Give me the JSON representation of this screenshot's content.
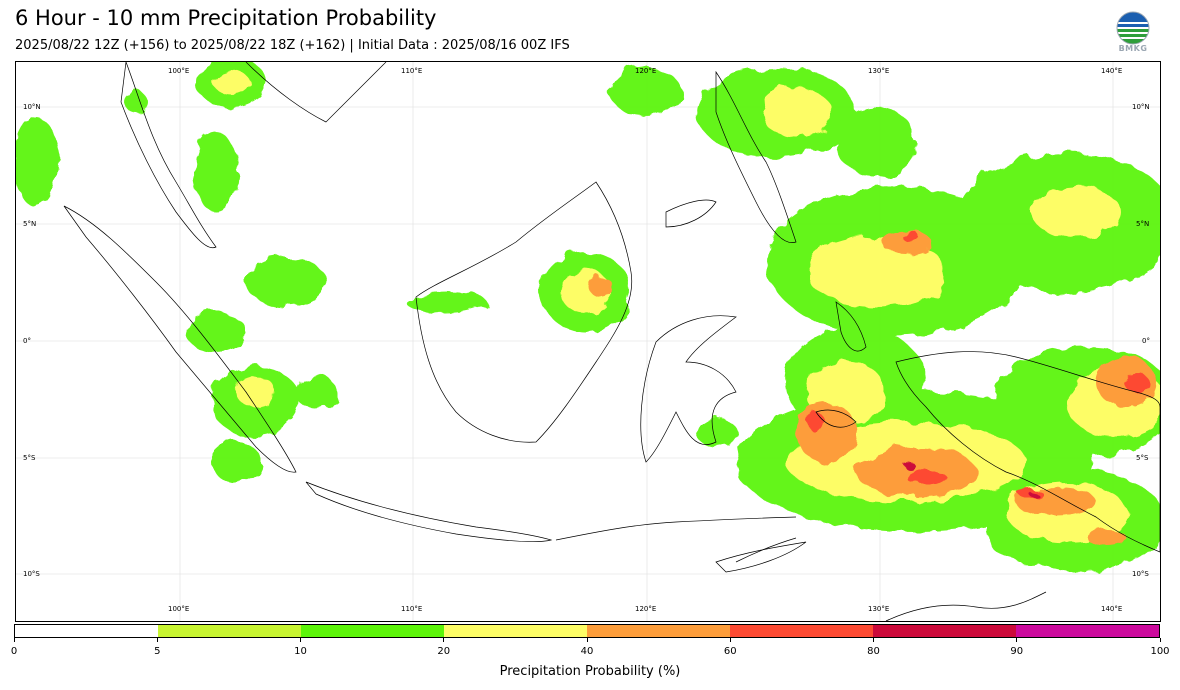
{
  "header": {
    "title": "6 Hour - 10 mm Precipitation Probability",
    "subtitle": "2025/08/22 12Z (+156) to 2025/08/22 18Z (+162) | Initial Data : 2025/08/16 00Z IFS",
    "logo_text": "BMKG"
  },
  "map": {
    "lon_labels": [
      "100°E",
      "110°E",
      "120°E",
      "130°E",
      "140°E"
    ],
    "lat_labels": [
      "10°N",
      "5°N",
      "0°",
      "5°S",
      "10°S"
    ]
  },
  "colorbar": {
    "title": "Precipitation Probability (%)",
    "ticks": [
      "0",
      "5",
      "10",
      "20",
      "40",
      "60",
      "80",
      "90",
      "100"
    ],
    "colors": [
      "#ffffff",
      "#c8f531",
      "#5df50a",
      "#fdfd66",
      "#fd9d3a",
      "#fd4a32",
      "#cc0a3b",
      "#cc0a9d"
    ]
  }
}
